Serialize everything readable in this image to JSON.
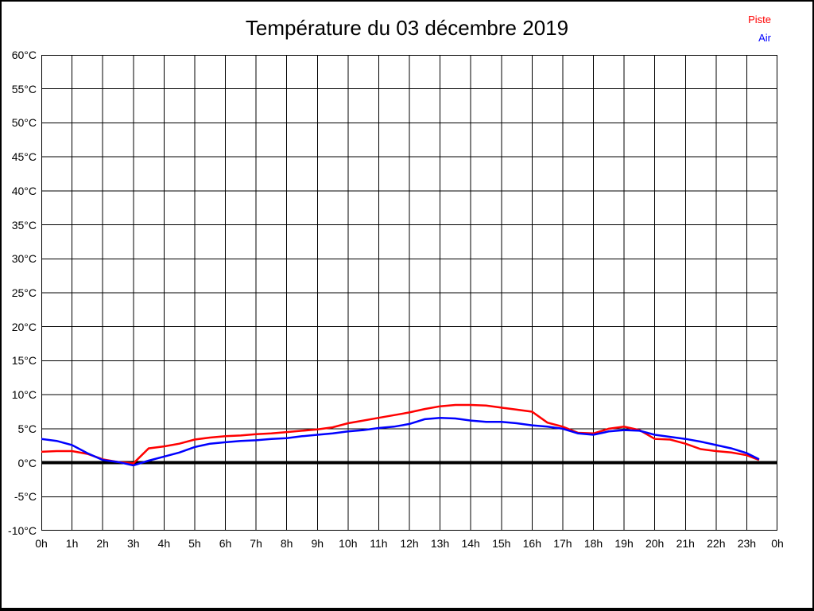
{
  "window": {
    "background": "#ffffff",
    "border_color": "#000000"
  },
  "header": {
    "title": "Température du 03 décembre 2019"
  },
  "legend": {
    "items": [
      {
        "label": "Piste",
        "color": "#ff0000"
      },
      {
        "label": "Air",
        "color": "#0000ff"
      }
    ]
  },
  "chart_data": {
    "type": "line",
    "title": "Température du 03 décembre 2019",
    "xlabel": "",
    "ylabel": "",
    "x_unit": "hours",
    "y_unit": "°C",
    "xlim": [
      0,
      24
    ],
    "ylim": [
      -10,
      60
    ],
    "grid": true,
    "grid_color": "#000000",
    "zero_line": "thick black horizontal line at 0°C",
    "legend_position": "top-right",
    "x_tick_labels": [
      "0h",
      "1h",
      "2h",
      "3h",
      "4h",
      "5h",
      "6h",
      "7h",
      "8h",
      "9h",
      "10h",
      "11h",
      "12h",
      "13h",
      "14h",
      "15h",
      "16h",
      "17h",
      "18h",
      "19h",
      "20h",
      "21h",
      "22h",
      "23h",
      "0h"
    ],
    "y_tick_labels": [
      "60°C",
      "55°C",
      "50°C",
      "45°C",
      "40°C",
      "35°C",
      "30°C",
      "25°C",
      "20°C",
      "15°C",
      "10°C",
      "5°C",
      "0°C",
      "-5°C",
      "-10°C"
    ],
    "x": [
      0,
      0.5,
      1,
      1.5,
      2,
      2.5,
      3,
      3.5,
      4,
      4.5,
      5,
      5.5,
      6,
      6.5,
      7,
      7.5,
      8,
      8.5,
      9,
      9.5,
      10,
      10.5,
      11,
      11.5,
      12,
      12.5,
      13,
      13.5,
      14,
      14.5,
      15,
      15.5,
      16,
      16.5,
      17,
      17.5,
      18,
      18.5,
      19,
      19.5,
      20,
      20.5,
      21,
      21.5,
      22,
      22.5,
      23,
      23.4
    ],
    "series": [
      {
        "name": "Piste",
        "color": "#ff0000",
        "values": [
          1.6,
          1.7,
          1.7,
          1.3,
          0.5,
          0.1,
          -0.1,
          2.1,
          2.4,
          2.8,
          3.4,
          3.7,
          3.9,
          4.0,
          4.2,
          4.3,
          4.5,
          4.7,
          4.9,
          5.2,
          5.8,
          6.2,
          6.6,
          7.0,
          7.4,
          7.9,
          8.3,
          8.5,
          8.5,
          8.4,
          8.1,
          7.8,
          7.5,
          5.9,
          5.3,
          4.4,
          4.3,
          5.0,
          5.3,
          4.8,
          3.5,
          3.4,
          2.8,
          2.0,
          1.7,
          1.5,
          1.1,
          0.4
        ]
      },
      {
        "name": "Air",
        "color": "#0000ff",
        "values": [
          3.5,
          3.2,
          2.6,
          1.4,
          0.4,
          0.1,
          -0.4,
          0.3,
          0.9,
          1.5,
          2.3,
          2.8,
          3.0,
          3.2,
          3.3,
          3.5,
          3.6,
          3.9,
          4.1,
          4.3,
          4.6,
          4.8,
          5.1,
          5.3,
          5.7,
          6.4,
          6.6,
          6.5,
          6.2,
          6.0,
          6.0,
          5.8,
          5.5,
          5.3,
          5.0,
          4.3,
          4.1,
          4.6,
          4.8,
          4.7,
          4.1,
          3.8,
          3.5,
          3.1,
          2.6,
          2.1,
          1.4,
          0.5
        ]
      }
    ]
  }
}
